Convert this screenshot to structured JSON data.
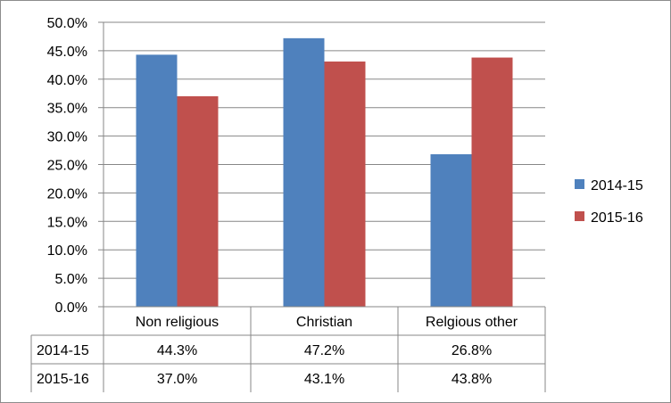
{
  "chart_data": {
    "type": "bar",
    "categories": [
      "Non religious",
      "Christian",
      "Relgious other"
    ],
    "series": [
      {
        "name": "2014-15",
        "values": [
          44.3,
          47.2,
          26.8
        ],
        "color": "#4F81BD"
      },
      {
        "name": "2015-16",
        "values": [
          37.0,
          43.1,
          43.8
        ],
        "color": "#C0504D"
      }
    ],
    "table": {
      "rows": [
        {
          "label": "2014-15",
          "cells": [
            "44.3%",
            "47.2%",
            "26.8%"
          ]
        },
        {
          "label": "2015-16",
          "cells": [
            "37.0%",
            "43.1%",
            "43.8%"
          ]
        }
      ]
    },
    "ylim": [
      0,
      50
    ],
    "yticks": [
      "0.0%",
      "5.0%",
      "10.0%",
      "15.0%",
      "20.0%",
      "25.0%",
      "30.0%",
      "35.0%",
      "40.0%",
      "45.0%",
      "50.0%"
    ],
    "grid": true,
    "legend_position": "right",
    "title": "",
    "xlabel": "",
    "ylabel": ""
  }
}
